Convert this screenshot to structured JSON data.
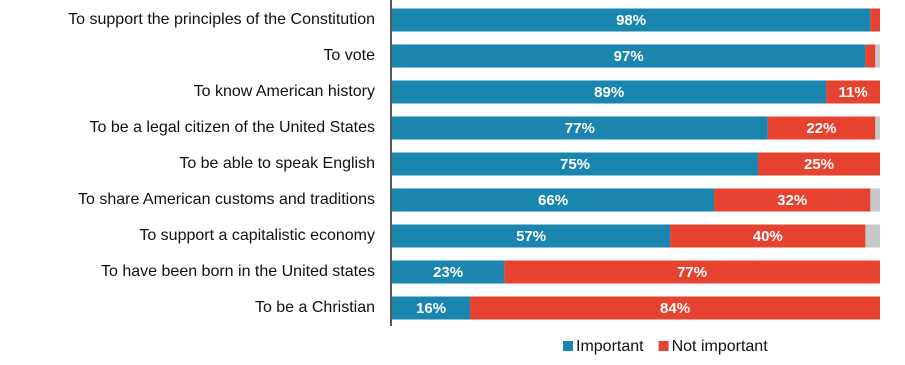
{
  "chart_data": {
    "type": "stacked-barh",
    "categories": [
      "To support the principles of the Constitution",
      "To vote",
      "To know American history",
      "To be a legal citizen of the United States",
      "To be able to speak English",
      "To share American customs and traditions",
      "To support a capitalistic economy",
      "To have been born in the United states",
      "To be a Christian"
    ],
    "series": [
      {
        "name": "Important",
        "color": "#1a85ae",
        "values": [
          98,
          97,
          89,
          77,
          75,
          66,
          57,
          23,
          16
        ],
        "value_labels": [
          "98%",
          "97%",
          "89%",
          "77%",
          "75%",
          "66%",
          "57%",
          "23%",
          "16%"
        ]
      },
      {
        "name": "Not important",
        "color": "#e5432f",
        "values": [
          2,
          2,
          11,
          22,
          25,
          32,
          40,
          77,
          84
        ],
        "value_labels": [
          null,
          null,
          "11%",
          "22%",
          "25%",
          "32%",
          "40%",
          "77%",
          "84%"
        ]
      }
    ],
    "xlim": [
      0,
      100
    ],
    "track_color": "#c8c8c8",
    "legend": "bottom"
  }
}
